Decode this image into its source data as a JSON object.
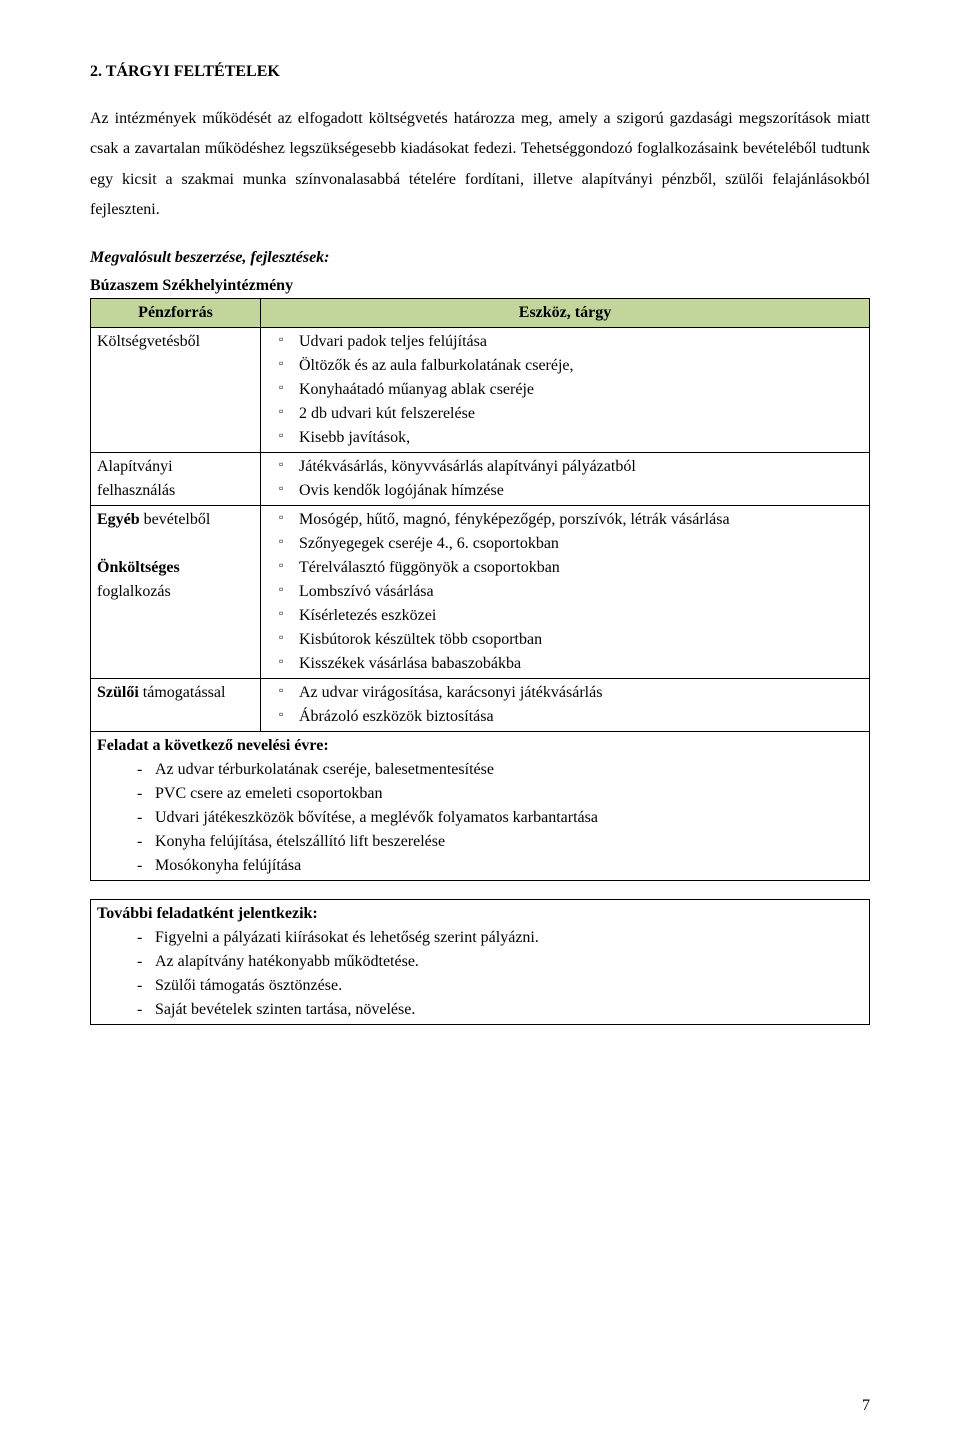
{
  "heading": "2. TÁRGYI FELTÉTELEK",
  "para1": "Az intézmények működését az elfogadott költségvetés határozza meg, amely a szigorú gazdasági megszorítások miatt csak a zavartalan működéshez legszükségesebb kiadásokat fedezi. Tehetséggondozó foglalkozásaink bevételéből tudtunk egy kicsit a szakmai munka színvonalasabbá tételére fordítani, illetve alapítványi pénzből, szülői felajánlásokból fejleszteni.",
  "megv_title": "Megvalósult beszerzése, fejlesztések:",
  "inst_title": "Búzaszem Székhelyintézmény",
  "table": {
    "header_left": "Pénzforrás",
    "header_right": "Eszköz, tárgy",
    "header_bg": "#c2d69b",
    "rows": [
      {
        "label": "Költségvetésből",
        "items": [
          "Udvari padok teljes felújítása",
          "Öltözők és az aula falburkolatának cseréje,",
          "Konyhaátadó műanyag ablak cseréje",
          "2 db udvari kút felszerelése",
          "Kisebb javítások,"
        ]
      },
      {
        "label": "Alapítványi felhasználás",
        "items": [
          "Játékvásárlás, könyvvásárlás alapítványi pályázatból",
          "Ovis kendők logójának hímzése"
        ]
      },
      {
        "label_lines": [
          "Egyéb bevételből",
          "",
          "Önköltséges foglalkozás"
        ],
        "label1_bold": "Egyéb",
        "label1_rest": "bevételből",
        "label2_bold": "Önköltséges",
        "label2_rest": "foglalkozás",
        "items": [
          "Mosógép, hűtő, magnó, fényképezőgép, porszívók, létrák vásárlása",
          "Szőnyegegek cseréje 4., 6. csoportokban",
          "Térelválasztó függönyök a csoportokban",
          "Lombszívó vásárlása",
          "Kísérletezés eszközei",
          "Kisbútorok készültek több csoportban",
          "Kisszékek vásárlása babaszobákba"
        ]
      },
      {
        "label_bold": "Szülői",
        "label_rest": "támogatással",
        "items": [
          "Az udvar virágosítása, karácsonyi játékvásárlás",
          "Ábrázoló eszközök biztosítása"
        ]
      }
    ],
    "task_title": "Feladat a következő nevelési évre:",
    "tasks": [
      "Az udvar térburkolatának cseréje, balesetmentesítése",
      "PVC csere az emeleti csoportokban",
      "Udvari játékeszközök bővítése, a meglévők folyamatos karbantartása",
      "Konyha felújítása, ételszállító lift beszerelése",
      "Mosókonyha felújítása"
    ]
  },
  "further_title": "További feladatként jelentkezik:",
  "further": [
    "Figyelni a pályázati kiírásokat és lehetőség szerint pályázni.",
    "Az alapítvány hatékonyabb működtetése.",
    "Szülői támogatás ösztönzése.",
    "Saját bevételek szinten tartása, növelése."
  ],
  "page_number": "7"
}
